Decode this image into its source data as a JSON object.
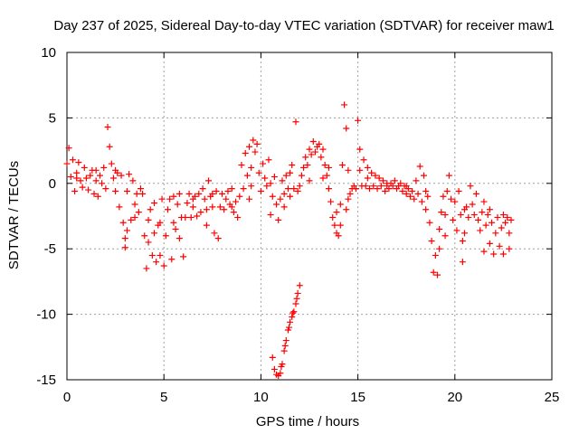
{
  "chart_data": {
    "type": "scatter",
    "title": "Day 237 of 2025, Sidereal Day-to-day VTEC variation (SDTVAR) for receiver maw1",
    "xlabel": "GPS time / hours",
    "ylabel": "SDTVAR / TECUs",
    "xlim": [
      0,
      25
    ],
    "ylim": [
      -15,
      10
    ],
    "xticks": [
      "0",
      "5",
      "10",
      "15",
      "20",
      "25"
    ],
    "yticks": [
      "10",
      "5",
      "0",
      "-5",
      "-10",
      "-15"
    ],
    "grid": true,
    "marker": "plus",
    "color": "#ff0000",
    "series": [
      {
        "name": "SDTVAR",
        "points": [
          [
            0.0,
            1.5
          ],
          [
            0.1,
            2.7
          ],
          [
            0.2,
            0.5
          ],
          [
            0.3,
            1.8
          ],
          [
            0.4,
            -0.6
          ],
          [
            0.5,
            0.8
          ],
          [
            0.6,
            1.6
          ],
          [
            0.7,
            0.2
          ],
          [
            0.8,
            -0.3
          ],
          [
            0.9,
            1.2
          ],
          [
            1.0,
            0.4
          ],
          [
            1.1,
            -0.5
          ],
          [
            1.2,
            0.6
          ],
          [
            1.3,
            1.0
          ],
          [
            1.4,
            -0.8
          ],
          [
            1.5,
            0.2
          ],
          [
            1.6,
            -1.0
          ],
          [
            1.7,
            0.6
          ],
          [
            1.8,
            0.0
          ],
          [
            1.9,
            1.2
          ],
          [
            2.0,
            -0.4
          ],
          [
            2.1,
            4.3
          ],
          [
            2.2,
            2.8
          ],
          [
            2.3,
            1.5
          ],
          [
            2.4,
            0.4
          ],
          [
            2.5,
            -0.6
          ],
          [
            2.6,
            0.8
          ],
          [
            2.7,
            -1.8
          ],
          [
            2.8,
            0.6
          ],
          [
            2.9,
            -3.0
          ],
          [
            3.0,
            -4.9
          ],
          [
            3.1,
            -0.6
          ],
          [
            3.2,
            0.7
          ],
          [
            3.3,
            -2.8
          ],
          [
            3.4,
            0.2
          ],
          [
            3.5,
            -2.6
          ],
          [
            3.6,
            -0.8
          ],
          [
            3.7,
            -2.2
          ],
          [
            3.8,
            -0.4
          ],
          [
            3.9,
            -0.8
          ],
          [
            4.0,
            -4.0
          ],
          [
            4.1,
            -6.5
          ],
          [
            4.2,
            -4.5
          ],
          [
            4.3,
            -2.0
          ],
          [
            4.4,
            -5.5
          ],
          [
            4.5,
            -1.5
          ],
          [
            4.6,
            -6.0
          ],
          [
            4.7,
            -3.2
          ],
          [
            4.8,
            -5.5
          ],
          [
            4.9,
            -1.2
          ],
          [
            5.0,
            -6.3
          ],
          [
            5.1,
            -4.0
          ],
          [
            5.2,
            -2.0
          ],
          [
            5.3,
            -1.2
          ],
          [
            5.4,
            -5.8
          ],
          [
            5.5,
            -1.0
          ],
          [
            5.6,
            -3.5
          ],
          [
            5.7,
            -1.6
          ],
          [
            5.8,
            -0.8
          ],
          [
            5.9,
            -2.6
          ],
          [
            6.0,
            -5.6
          ],
          [
            6.1,
            -2.6
          ],
          [
            6.2,
            -1.5
          ],
          [
            6.3,
            -0.8
          ],
          [
            6.4,
            -2.6
          ],
          [
            6.5,
            -1.8
          ],
          [
            6.6,
            -1.0
          ],
          [
            6.7,
            -2.5
          ],
          [
            6.8,
            -0.8
          ],
          [
            6.9,
            -2.2
          ],
          [
            7.0,
            -0.4
          ],
          [
            7.1,
            -1.2
          ],
          [
            7.2,
            -2.0
          ],
          [
            7.3,
            0.2
          ],
          [
            7.4,
            -1.0
          ],
          [
            7.5,
            -1.8
          ],
          [
            7.6,
            -3.8
          ],
          [
            7.7,
            -0.6
          ],
          [
            7.8,
            -4.2
          ],
          [
            7.9,
            -1.8
          ],
          [
            8.0,
            -0.8
          ],
          [
            8.1,
            -2.0
          ],
          [
            8.2,
            -1.2
          ],
          [
            8.3,
            -0.6
          ],
          [
            8.4,
            -1.6
          ],
          [
            8.5,
            -0.4
          ],
          [
            8.6,
            -2.2
          ],
          [
            8.7,
            -1.4
          ],
          [
            8.8,
            -2.6
          ],
          [
            8.9,
            -1.0
          ],
          [
            9.0,
            1.4
          ],
          [
            9.1,
            -0.4
          ],
          [
            9.2,
            2.3
          ],
          [
            9.3,
            0.6
          ],
          [
            9.4,
            2.8
          ],
          [
            9.5,
            1.2
          ],
          [
            9.6,
            3.3
          ],
          [
            9.7,
            2.4
          ],
          [
            9.8,
            3.0
          ],
          [
            9.9,
            0.8
          ],
          [
            10.0,
            -0.6
          ],
          [
            10.1,
            1.5
          ],
          [
            10.2,
            0.4
          ],
          [
            10.3,
            -0.2
          ],
          [
            10.4,
            1.8
          ],
          [
            10.5,
            0.0
          ],
          [
            10.6,
            -1.0
          ],
          [
            10.7,
            0.5
          ],
          [
            10.8,
            -1.6
          ],
          [
            10.9,
            -2.8
          ],
          [
            11.0,
            -1.2
          ],
          [
            11.1,
            0.2
          ],
          [
            11.2,
            -0.8
          ],
          [
            11.3,
            0.6
          ],
          [
            11.4,
            -0.4
          ],
          [
            11.5,
            0.8
          ],
          [
            11.6,
            1.4
          ],
          [
            11.7,
            -0.4
          ],
          [
            11.8,
            4.7
          ],
          [
            11.9,
            -0.6
          ],
          [
            12.0,
            -0.2
          ],
          [
            12.1,
            0.6
          ],
          [
            12.2,
            1.2
          ],
          [
            12.3,
            2.0
          ],
          [
            12.4,
            1.4
          ],
          [
            12.5,
            2.6
          ],
          [
            12.6,
            2.2
          ],
          [
            12.7,
            3.2
          ],
          [
            12.8,
            2.4
          ],
          [
            12.9,
            2.8
          ],
          [
            13.0,
            3.0
          ],
          [
            13.1,
            2.0
          ],
          [
            13.2,
            2.6
          ],
          [
            13.3,
            1.4
          ],
          [
            13.4,
            0.6
          ],
          [
            13.5,
            -0.4
          ],
          [
            13.6,
            -1.4
          ],
          [
            13.7,
            -2.6
          ],
          [
            13.8,
            -3.2
          ],
          [
            13.9,
            -3.8
          ],
          [
            14.0,
            -4.0
          ],
          [
            14.1,
            -3.2
          ],
          [
            14.2,
            1.4
          ],
          [
            14.3,
            6.0
          ],
          [
            14.4,
            -2.0
          ],
          [
            14.5,
            -1.2
          ],
          [
            14.6,
            -0.8
          ],
          [
            14.7,
            -0.4
          ],
          [
            14.8,
            -0.2
          ],
          [
            14.9,
            -0.4
          ],
          [
            15.0,
            4.8
          ],
          [
            15.1,
            2.6
          ],
          [
            15.2,
            -0.2
          ],
          [
            15.3,
            1.8
          ],
          [
            15.4,
            -0.2
          ],
          [
            15.5,
            1.2
          ],
          [
            15.6,
            -0.4
          ],
          [
            15.7,
            0.8
          ],
          [
            15.8,
            -0.2
          ],
          [
            15.9,
            0.6
          ],
          [
            16.0,
            -0.4
          ],
          [
            16.1,
            0.4
          ],
          [
            16.2,
            -0.2
          ],
          [
            16.3,
            0.2
          ],
          [
            16.4,
            -0.6
          ],
          [
            16.5,
            0.0
          ],
          [
            16.6,
            -0.4
          ],
          [
            16.7,
            0.0
          ],
          [
            16.8,
            -0.2
          ],
          [
            16.9,
            0.2
          ],
          [
            17.0,
            -0.4
          ],
          [
            17.1,
            -0.2
          ],
          [
            17.2,
            0.0
          ],
          [
            17.3,
            -0.6
          ],
          [
            17.4,
            -0.2
          ],
          [
            17.5,
            -0.8
          ],
          [
            17.6,
            -0.4
          ],
          [
            17.7,
            -1.0
          ],
          [
            17.8,
            -0.6
          ],
          [
            17.9,
            -1.2
          ],
          [
            18.0,
            0.2
          ],
          [
            18.1,
            -0.8
          ],
          [
            18.2,
            1.3
          ],
          [
            18.3,
            -1.4
          ],
          [
            18.4,
            0.6
          ],
          [
            18.5,
            -2.0
          ],
          [
            18.6,
            -1.0
          ],
          [
            18.7,
            -3.0
          ],
          [
            18.8,
            -4.4
          ],
          [
            18.9,
            -6.8
          ],
          [
            19.0,
            -5.5
          ],
          [
            19.1,
            -7.0
          ],
          [
            19.2,
            -3.5
          ],
          [
            19.3,
            -2.2
          ],
          [
            19.4,
            -1.0
          ],
          [
            19.5,
            -2.4
          ],
          [
            19.6,
            -0.6
          ],
          [
            19.7,
            0.6
          ],
          [
            19.8,
            -1.2
          ],
          [
            19.9,
            -2.8
          ],
          [
            20.0,
            -1.4
          ],
          [
            20.1,
            -3.6
          ],
          [
            20.2,
            -0.6
          ],
          [
            20.3,
            -2.4
          ],
          [
            20.4,
            -6.0
          ],
          [
            20.5,
            -3.8
          ],
          [
            20.6,
            -1.8
          ],
          [
            20.7,
            -2.6
          ],
          [
            20.8,
            -0.2
          ],
          [
            20.9,
            -1.6
          ],
          [
            21.0,
            -2.4
          ],
          [
            21.1,
            -0.8
          ],
          [
            21.2,
            -2.8
          ],
          [
            21.3,
            -3.6
          ],
          [
            21.4,
            -2.2
          ],
          [
            21.5,
            -5.2
          ],
          [
            21.6,
            -3.2
          ],
          [
            21.7,
            -2.4
          ],
          [
            21.8,
            -4.6
          ],
          [
            21.9,
            -3.0
          ],
          [
            22.0,
            -5.4
          ],
          [
            22.1,
            -3.8
          ],
          [
            22.2,
            -2.6
          ],
          [
            22.3,
            -4.8
          ],
          [
            22.4,
            -3.4
          ],
          [
            22.5,
            -5.4
          ],
          [
            22.6,
            -3.0
          ],
          [
            22.7,
            -2.6
          ],
          [
            22.8,
            -3.8
          ],
          [
            22.9,
            -2.8
          ],
          [
            0.5,
            0.4
          ],
          [
            1.5,
            1.0
          ],
          [
            2.5,
            1.0
          ],
          [
            3.5,
            -1.6
          ],
          [
            4.5,
            -3.8
          ],
          [
            5.5,
            -3.0
          ],
          [
            6.5,
            -1.2
          ],
          [
            7.5,
            -0.8
          ],
          [
            8.5,
            -1.8
          ],
          [
            9.5,
            -0.2
          ],
          [
            10.5,
            -2.4
          ],
          [
            11.5,
            -1.0
          ],
          [
            12.5,
            0.2
          ],
          [
            13.5,
            1.2
          ],
          [
            14.5,
            1.0
          ],
          [
            15.5,
            0.4
          ],
          [
            16.5,
            -0.2
          ],
          [
            17.5,
            -0.2
          ],
          [
            18.5,
            -0.6
          ],
          [
            19.5,
            -4.0
          ],
          [
            20.5,
            -2.0
          ],
          [
            21.5,
            -1.4
          ],
          [
            22.5,
            -2.4
          ],
          [
            4.2,
            -2.8
          ],
          [
            4.8,
            -3.0
          ],
          [
            5.8,
            -4.2
          ],
          [
            7.2,
            -3.2
          ],
          [
            9.4,
            -1.2
          ],
          [
            11.2,
            -1.8
          ],
          [
            13.2,
            0.4
          ],
          [
            13.9,
            -2.2
          ],
          [
            14.1,
            -1.6
          ],
          [
            14.4,
            4.2
          ],
          [
            15.1,
            1.0
          ],
          [
            19.2,
            -5.0
          ],
          [
            20.4,
            -4.4
          ],
          [
            21.8,
            -2.0
          ],
          [
            22.8,
            -5.0
          ],
          [
            3.0,
            -4.2
          ],
          [
            3.1,
            -3.6
          ],
          [
            10.6,
            -13.3
          ],
          [
            10.7,
            -14.2
          ],
          [
            10.8,
            -14.6
          ],
          [
            10.9,
            -14.7
          ],
          [
            11.0,
            -14.5
          ],
          [
            11.1,
            -13.8
          ],
          [
            11.2,
            -12.8
          ],
          [
            11.3,
            -12.0
          ],
          [
            11.4,
            -11.2
          ],
          [
            11.5,
            -10.6
          ],
          [
            11.6,
            -10.2
          ],
          [
            11.7,
            -9.8
          ],
          [
            11.8,
            -9.2
          ],
          [
            11.9,
            -8.4
          ],
          [
            12.0,
            -7.8
          ],
          [
            11.05,
            -14.0
          ],
          [
            11.25,
            -12.4
          ],
          [
            11.45,
            -11.0
          ],
          [
            11.65,
            -9.9
          ],
          [
            11.85,
            -8.8
          ]
        ]
      }
    ]
  }
}
